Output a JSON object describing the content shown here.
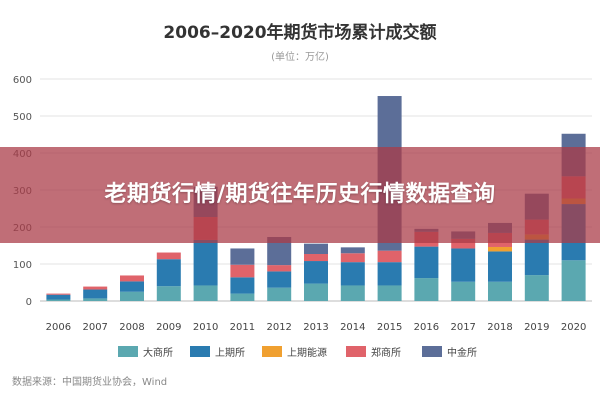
{
  "chart_data": {
    "type": "bar",
    "stacked": true,
    "title": "2006–2020年期货市场累计成交额",
    "subtitle": "(单位：万亿)",
    "source": "数据来源：中国期货业协会，Wind",
    "categories": [
      "2006",
      "2007",
      "2008",
      "2009",
      "2010",
      "2011",
      "2012",
      "2013",
      "2014",
      "2015",
      "2016",
      "2017",
      "2018",
      "2019",
      "2020"
    ],
    "ylim": [
      0,
      600
    ],
    "yticks": [
      0,
      100,
      200,
      300,
      400,
      500,
      600
    ],
    "grid": true,
    "legend": "bottom",
    "series": [
      {
        "name": "大商所",
        "color": "#5BA8B0",
        "values": [
          4,
          7,
          25,
          40,
          42,
          20,
          36,
          47,
          42,
          42,
          62,
          52,
          52,
          70,
          110
        ]
      },
      {
        "name": "上期所",
        "color": "#2A7BB0",
        "values": [
          13,
          24,
          28,
          73,
          123,
          44,
          44,
          61,
          63,
          63,
          85,
          90,
          82,
          96,
          152
        ]
      },
      {
        "name": "上期能源",
        "color": "#F0A030",
        "values": [
          0,
          0,
          0,
          0,
          0,
          0,
          0,
          0,
          0,
          0,
          0,
          0,
          12,
          14,
          15
        ]
      },
      {
        "name": "郑商所",
        "color": "#E0636A",
        "values": [
          3,
          8,
          16,
          18,
          62,
          34,
          17,
          19,
          24,
          31,
          40,
          26,
          38,
          40,
          60
        ]
      },
      {
        "name": "中金所",
        "color": "#5C6E98",
        "values": [
          0,
          0,
          0,
          0,
          82,
          44,
          76,
          28,
          16,
          418,
          8,
          20,
          27,
          70,
          115
        ]
      }
    ]
  },
  "banner": {
    "text": "老期货行情/期货往年历史行情数据查询"
  }
}
